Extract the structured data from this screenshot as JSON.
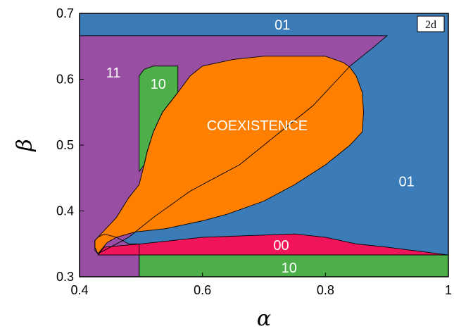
{
  "chart_data": {
    "type": "area",
    "title": "",
    "xlabel": "α",
    "ylabel": "β",
    "xlim": [
      0.4,
      1.0
    ],
    "ylim": [
      0.3,
      0.7
    ],
    "xticks": [
      {
        "value": 0.4,
        "label": "0.4"
      },
      {
        "value": 0.6,
        "label": "0.6"
      },
      {
        "value": 0.8,
        "label": "0.8"
      },
      {
        "value": 1.0,
        "label": "1"
      }
    ],
    "yticks": [
      {
        "value": 0.3,
        "label": "0.3"
      },
      {
        "value": 0.4,
        "label": "0.4"
      },
      {
        "value": 0.5,
        "label": "0.5"
      },
      {
        "value": 0.6,
        "label": "0.6"
      },
      {
        "value": 0.7,
        "label": "0.7"
      }
    ],
    "panel_tag": "2d",
    "grid": false,
    "regions": [
      {
        "id": "region-01-background",
        "color": "#3a7bb8",
        "polygon": [
          [
            0.4,
            0.3
          ],
          [
            1.0,
            0.3
          ],
          [
            1.0,
            0.7
          ],
          [
            0.4,
            0.7
          ]
        ]
      },
      {
        "id": "region-11",
        "color": "#984ea3",
        "polygon": [
          [
            0.4,
            0.3
          ],
          [
            0.4,
            0.666
          ],
          [
            0.9,
            0.666
          ],
          [
            0.88,
            0.65
          ],
          [
            0.86,
            0.635
          ],
          [
            0.84,
            0.62
          ],
          [
            0.82,
            0.6
          ],
          [
            0.8,
            0.58
          ],
          [
            0.78,
            0.56
          ],
          [
            0.74,
            0.53
          ],
          [
            0.7,
            0.5
          ],
          [
            0.66,
            0.47
          ],
          [
            0.62,
            0.45
          ],
          [
            0.58,
            0.43
          ],
          [
            0.55,
            0.41
          ],
          [
            0.52,
            0.39
          ],
          [
            0.5,
            0.375
          ],
          [
            0.48,
            0.36
          ],
          [
            0.46,
            0.35
          ],
          [
            0.43,
            0.335
          ],
          [
            0.425,
            0.34
          ],
          [
            0.425,
            0.355
          ],
          [
            0.43,
            0.36
          ],
          [
            0.44,
            0.365
          ],
          [
            0.46,
            0.36
          ],
          [
            0.48,
            0.35
          ],
          [
            0.497,
            0.35
          ],
          [
            0.497,
            0.3
          ]
        ]
      },
      {
        "id": "region-10-upper",
        "color": "#4daf4a",
        "polygon": [
          [
            0.497,
            0.46
          ],
          [
            0.497,
            0.605
          ],
          [
            0.505,
            0.615
          ],
          [
            0.52,
            0.62
          ],
          [
            0.56,
            0.62
          ],
          [
            0.56,
            0.58
          ],
          [
            0.535,
            0.55
          ],
          [
            0.52,
            0.52
          ],
          [
            0.51,
            0.49
          ],
          [
            0.505,
            0.47
          ]
        ]
      },
      {
        "id": "region-coexistence",
        "color": "#ff7f00",
        "polygon": [
          [
            0.43,
            0.335
          ],
          [
            0.425,
            0.345
          ],
          [
            0.425,
            0.355
          ],
          [
            0.44,
            0.37
          ],
          [
            0.46,
            0.39
          ],
          [
            0.48,
            0.42
          ],
          [
            0.497,
            0.44
          ],
          [
            0.505,
            0.47
          ],
          [
            0.51,
            0.49
          ],
          [
            0.52,
            0.52
          ],
          [
            0.535,
            0.55
          ],
          [
            0.56,
            0.58
          ],
          [
            0.58,
            0.605
          ],
          [
            0.6,
            0.62
          ],
          [
            0.65,
            0.63
          ],
          [
            0.7,
            0.635
          ],
          [
            0.8,
            0.635
          ],
          [
            0.83,
            0.625
          ],
          [
            0.84,
            0.618
          ],
          [
            0.85,
            0.605
          ],
          [
            0.86,
            0.58
          ],
          [
            0.862,
            0.55
          ],
          [
            0.86,
            0.52
          ],
          [
            0.84,
            0.5
          ],
          [
            0.8,
            0.47
          ],
          [
            0.75,
            0.44
          ],
          [
            0.7,
            0.415
          ],
          [
            0.64,
            0.395
          ],
          [
            0.6,
            0.385
          ],
          [
            0.54,
            0.373
          ],
          [
            0.49,
            0.368
          ],
          [
            0.46,
            0.36
          ],
          [
            0.445,
            0.352
          ]
        ]
      },
      {
        "id": "region-00",
        "color": "#f0145a",
        "polygon": [
          [
            0.43,
            0.333
          ],
          [
            0.44,
            0.345
          ],
          [
            0.5,
            0.35
          ],
          [
            0.6,
            0.36
          ],
          [
            0.75,
            0.365
          ],
          [
            0.8,
            0.36
          ],
          [
            0.85,
            0.35
          ],
          [
            0.9,
            0.345
          ],
          [
            1.0,
            0.333
          ]
        ]
      },
      {
        "id": "region-10-bottom",
        "color": "#4daf4a",
        "polygon": [
          [
            0.497,
            0.3
          ],
          [
            1.0,
            0.3
          ],
          [
            1.0,
            0.333
          ],
          [
            0.497,
            0.333
          ]
        ]
      }
    ],
    "labels": [
      {
        "id": "label-01-top",
        "text": "01",
        "x": 0.73,
        "y": 0.683
      },
      {
        "id": "label-11",
        "text": "11",
        "x": 0.455,
        "y": 0.61
      },
      {
        "id": "label-10-upper",
        "text": "10",
        "x": 0.528,
        "y": 0.593
      },
      {
        "id": "label-coexistence",
        "text": "COEXISTENCE",
        "x": 0.689,
        "y": 0.53
      },
      {
        "id": "label-01-right",
        "text": "01",
        "x": 0.932,
        "y": 0.445
      },
      {
        "id": "label-00",
        "text": "00",
        "x": 0.728,
        "y": 0.348
      },
      {
        "id": "label-10-bottom",
        "text": "10",
        "x": 0.741,
        "y": 0.314
      }
    ]
  }
}
